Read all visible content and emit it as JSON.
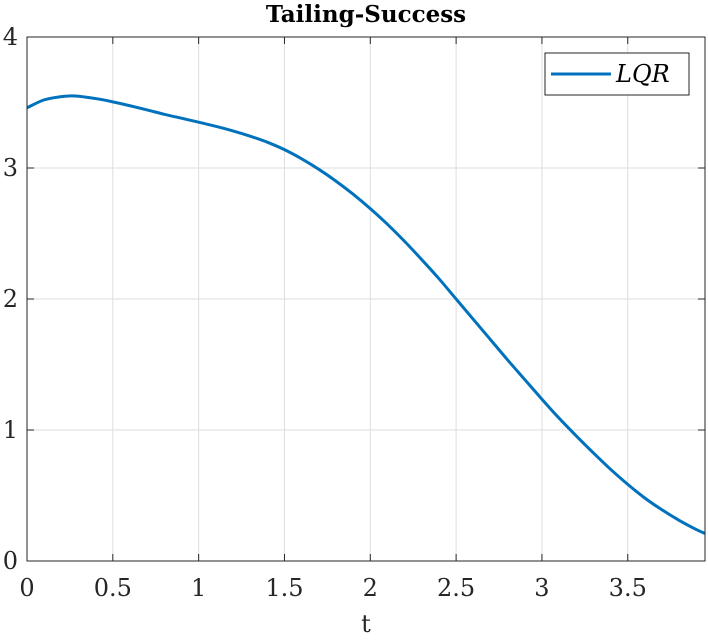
{
  "chart_data": {
    "type": "line",
    "title": "Tailing-Success",
    "xlabel": "t",
    "ylabel": "",
    "xlim": [
      0,
      3.95
    ],
    "ylim": [
      0,
      4
    ],
    "xticks": [
      0,
      0.5,
      1,
      1.5,
      2,
      2.5,
      3,
      3.5
    ],
    "xtick_labels": [
      "0",
      "0.5",
      "1",
      "1.5",
      "2",
      "2.5",
      "3",
      "3.5"
    ],
    "yticks": [
      0,
      1,
      2,
      3,
      4
    ],
    "ytick_labels": [
      "0",
      "1",
      "2",
      "3",
      "4"
    ],
    "grid": true,
    "legend_position": "top-right",
    "series": [
      {
        "name": "LQR",
        "color": "#0072BD",
        "x": [
          0,
          0.1,
          0.2,
          0.25,
          0.3,
          0.4,
          0.5,
          0.6,
          0.7,
          0.8,
          0.9,
          1.0,
          1.1,
          1.2,
          1.3,
          1.4,
          1.5,
          1.6,
          1.7,
          1.8,
          1.9,
          2.0,
          2.1,
          2.2,
          2.3,
          2.4,
          2.5,
          2.6,
          2.7,
          2.8,
          2.9,
          3.0,
          3.1,
          3.2,
          3.3,
          3.4,
          3.5,
          3.6,
          3.7,
          3.8,
          3.9,
          3.95
        ],
        "y": [
          3.46,
          3.52,
          3.545,
          3.55,
          3.548,
          3.53,
          3.505,
          3.475,
          3.443,
          3.41,
          3.38,
          3.35,
          3.318,
          3.283,
          3.243,
          3.197,
          3.14,
          3.07,
          2.99,
          2.9,
          2.8,
          2.69,
          2.57,
          2.44,
          2.3,
          2.155,
          2.0,
          1.845,
          1.69,
          1.535,
          1.385,
          1.235,
          1.09,
          0.955,
          0.825,
          0.7,
          0.585,
          0.48,
          0.39,
          0.31,
          0.24,
          0.21
        ]
      }
    ]
  }
}
